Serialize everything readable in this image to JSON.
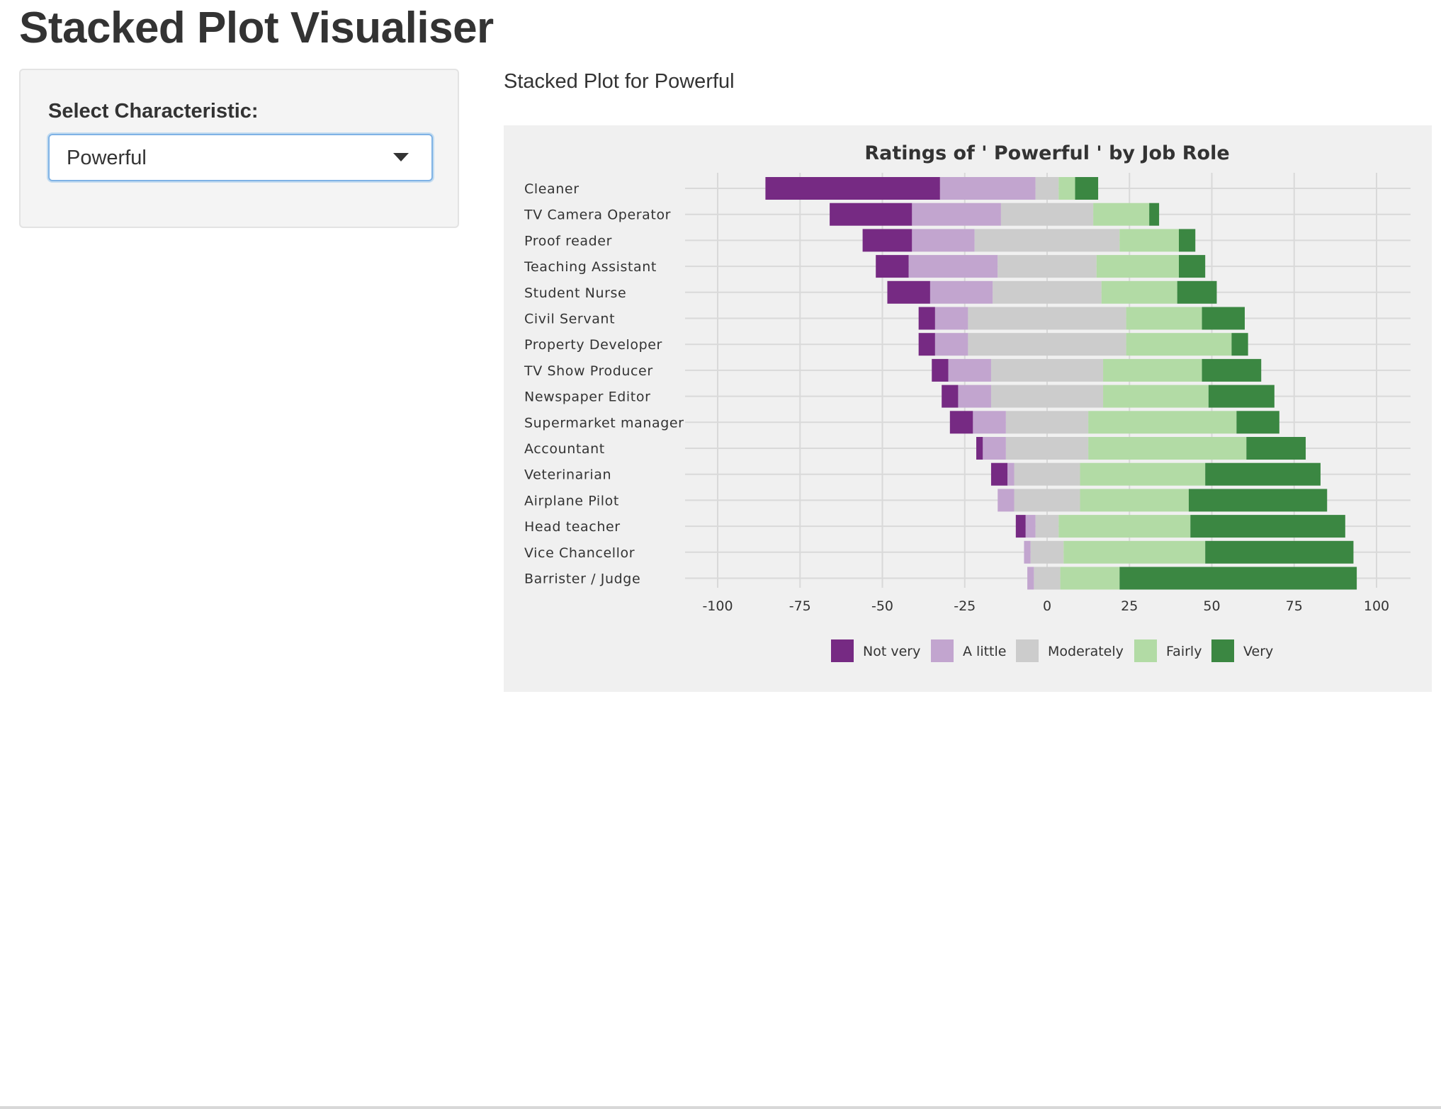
{
  "app": {
    "title": "Stacked Plot Visualiser"
  },
  "sidebar": {
    "select_label": "Select Characteristic:",
    "select_value": "Powerful"
  },
  "main": {
    "output_heading": "Stacked Plot for Powerful"
  },
  "colors": {
    "panel_background": "#f0f0f0",
    "grid": "#d9d9d9",
    "Not very": "#762a83",
    "A little": "#c2a5cf",
    "Moderately": "#cccccc",
    "Fairly": "#b2dba5",
    "Very": "#3b8742"
  },
  "chart_data": {
    "type": "bar",
    "orientation": "horizontal",
    "stacking": "diverging",
    "title": "Ratings of ' Powerful ' by Job Role",
    "xlabel": "",
    "ylabel": "",
    "xlim": [
      -110,
      110
    ],
    "xticks": [
      "-100",
      "-75",
      "-50",
      "-25",
      "0",
      "25",
      "50",
      "75",
      "100"
    ],
    "xtick_values": [
      -100,
      -75,
      -50,
      -25,
      0,
      25,
      50,
      75,
      100
    ],
    "grid": true,
    "legend_position": "bottom",
    "categories": [
      "Cleaner",
      "TV Camera Operator",
      "Proof reader",
      "Teaching Assistant",
      "Student Nurse",
      "Civil Servant",
      "Property Developer",
      "TV Show Producer",
      "Newspaper Editor",
      "Supermarket manager",
      "Accountant",
      "Veterinarian",
      "Airplane Pilot",
      "Head teacher",
      "Vice Chancellor",
      "Barrister / Judge"
    ],
    "series": [
      {
        "name": "Not very",
        "values": [
          53,
          25,
          15,
          10,
          13,
          5,
          5,
          5,
          5,
          7,
          2,
          5,
          0,
          3,
          0,
          0
        ]
      },
      {
        "name": "A little",
        "values": [
          29,
          27,
          19,
          27,
          19,
          10,
          10,
          13,
          10,
          10,
          7,
          2,
          5,
          3,
          2,
          2
        ]
      },
      {
        "name": "Moderately",
        "values": [
          7,
          28,
          44,
          30,
          33,
          48,
          48,
          34,
          34,
          25,
          25,
          20,
          20,
          7,
          10,
          8
        ]
      },
      {
        "name": "Fairly",
        "values": [
          5,
          17,
          18,
          25,
          23,
          23,
          32,
          30,
          32,
          45,
          48,
          38,
          33,
          40,
          43,
          18
        ]
      },
      {
        "name": "Very",
        "values": [
          7,
          3,
          5,
          8,
          12,
          13,
          5,
          18,
          20,
          13,
          18,
          35,
          42,
          47,
          45,
          72
        ]
      }
    ]
  }
}
